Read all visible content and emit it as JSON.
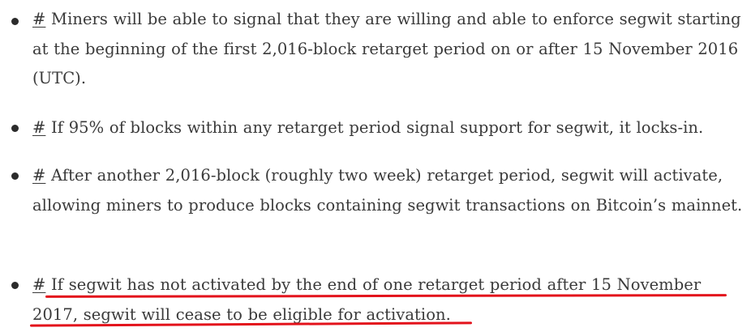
{
  "items": [
    {
      "anchor": "#",
      "text": "Miners will be able to signal that they are willing and able to enforce segwit starting at the beginning of the first 2,016-block retarget period on or after 15 November 2016 (UTC)."
    },
    {
      "anchor": "#",
      "text": "If 95% of blocks within any retarget period signal support for segwit, it locks-in."
    },
    {
      "anchor": "#",
      "text": "After another 2,016-block (roughly two week) retarget period, segwit will activate, allowing miners to produce blocks containing segwit transactions on Bitcoin’s mainnet."
    },
    {
      "anchor": "#",
      "text": "If segwit has not activated by the end of one retarget period after 15 November 2017, segwit will cease to be eligible for activation."
    }
  ],
  "colors": {
    "text": "#3a3a3a",
    "bullet": "#2b2b2b",
    "highlight": "#e3121b"
  }
}
